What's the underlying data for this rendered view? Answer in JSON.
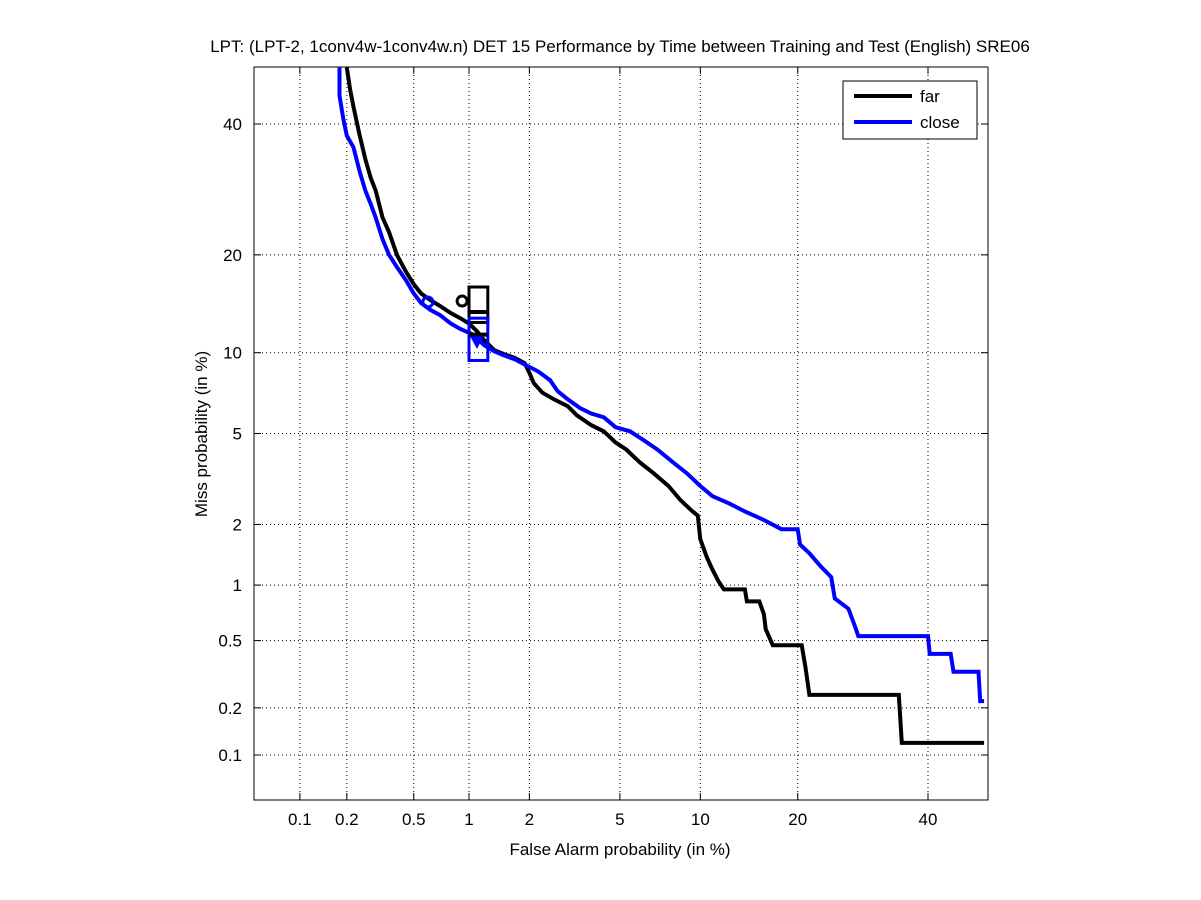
{
  "chart_data": {
    "type": "line",
    "title": "LPT: (LPT-2, 1conv4w-1conv4w.n) DET 15 Performance by Time between Training and Test (English) SRE06",
    "xlabel": "False Alarm probability (in %)",
    "ylabel": "Miss probability (in %)",
    "scale": "probit",
    "xlim": [
      0.05,
      50
    ],
    "ylim": [
      0.05,
      50
    ],
    "xticks": [
      0.1,
      0.2,
      0.5,
      1,
      2,
      5,
      10,
      20,
      40
    ],
    "xtick_labels": [
      "0.1",
      "0.2",
      "0.5",
      "1",
      "2",
      "5",
      "10",
      "20",
      "40"
    ],
    "yticks": [
      0.1,
      0.2,
      0.5,
      1,
      2,
      5,
      10,
      20,
      40
    ],
    "ytick_labels": [
      "0.1",
      "0.2",
      "0.5",
      "1",
      "2",
      "5",
      "10",
      "20",
      "40"
    ],
    "grid": true,
    "legend_position": "top-right",
    "series": [
      {
        "name": "far",
        "color": "#000000",
        "points": [
          [
            0.2,
            50
          ],
          [
            0.21,
            46
          ],
          [
            0.22,
            43
          ],
          [
            0.24,
            38
          ],
          [
            0.26,
            34
          ],
          [
            0.28,
            31
          ],
          [
            0.3,
            29
          ],
          [
            0.33,
            25
          ],
          [
            0.36,
            23
          ],
          [
            0.4,
            20
          ],
          [
            0.45,
            18
          ],
          [
            0.5,
            16.5
          ],
          [
            0.55,
            15.5
          ],
          [
            0.62,
            14.8
          ],
          [
            0.7,
            14.2
          ],
          [
            0.8,
            13.5
          ],
          [
            0.9,
            13
          ],
          [
            1.0,
            12.5
          ],
          [
            1.1,
            11.8
          ],
          [
            1.2,
            11
          ],
          [
            1.35,
            10.2
          ],
          [
            1.5,
            9.9
          ],
          [
            1.7,
            9.6
          ],
          [
            1.9,
            9.2
          ],
          [
            2.0,
            8.5
          ],
          [
            2.1,
            7.8
          ],
          [
            2.3,
            7.2
          ],
          [
            2.6,
            6.8
          ],
          [
            3.0,
            6.4
          ],
          [
            3.3,
            5.9
          ],
          [
            3.8,
            5.4
          ],
          [
            4.3,
            5.1
          ],
          [
            4.8,
            4.6
          ],
          [
            5.3,
            4.3
          ],
          [
            6.0,
            3.8
          ],
          [
            6.8,
            3.4
          ],
          [
            7.7,
            3.0
          ],
          [
            8.5,
            2.6
          ],
          [
            9.4,
            2.3
          ],
          [
            9.8,
            2.2
          ],
          [
            10.0,
            1.7
          ],
          [
            10.5,
            1.4
          ],
          [
            11,
            1.2
          ],
          [
            11.5,
            1.05
          ],
          [
            12,
            0.95
          ],
          [
            14,
            0.95
          ],
          [
            14.2,
            0.82
          ],
          [
            15.5,
            0.82
          ],
          [
            16,
            0.7
          ],
          [
            16.2,
            0.58
          ],
          [
            17,
            0.47
          ],
          [
            20.5,
            0.47
          ],
          [
            21,
            0.35
          ],
          [
            21.5,
            0.24
          ],
          [
            35,
            0.24
          ],
          [
            35.5,
            0.12
          ],
          [
            50,
            0.12
          ]
        ]
      },
      {
        "name": "close",
        "color": "#0000ff",
        "points": [
          [
            0.18,
            50
          ],
          [
            0.18,
            45
          ],
          [
            0.19,
            41
          ],
          [
            0.2,
            38
          ],
          [
            0.22,
            36
          ],
          [
            0.24,
            32
          ],
          [
            0.26,
            29
          ],
          [
            0.28,
            27
          ],
          [
            0.3,
            25
          ],
          [
            0.33,
            22
          ],
          [
            0.36,
            20
          ],
          [
            0.4,
            18.5
          ],
          [
            0.45,
            17
          ],
          [
            0.5,
            15.5
          ],
          [
            0.55,
            14.5
          ],
          [
            0.62,
            13.8
          ],
          [
            0.7,
            13.3
          ],
          [
            0.8,
            12.5
          ],
          [
            0.9,
            12
          ],
          [
            1.05,
            11.5
          ],
          [
            1.2,
            10.6
          ],
          [
            1.35,
            10.1
          ],
          [
            1.5,
            9.8
          ],
          [
            1.7,
            9.5
          ],
          [
            1.9,
            9.1
          ],
          [
            2.2,
            8.6
          ],
          [
            2.5,
            8.0
          ],
          [
            2.7,
            7.3
          ],
          [
            3.0,
            6.8
          ],
          [
            3.4,
            6.3
          ],
          [
            3.8,
            6.0
          ],
          [
            4.3,
            5.8
          ],
          [
            4.8,
            5.3
          ],
          [
            5.5,
            5.1
          ],
          [
            6.2,
            4.7
          ],
          [
            7.0,
            4.3
          ],
          [
            8.0,
            3.8
          ],
          [
            9.0,
            3.4
          ],
          [
            10,
            3.0
          ],
          [
            11,
            2.7
          ],
          [
            12.5,
            2.5
          ],
          [
            14,
            2.3
          ],
          [
            16,
            2.1
          ],
          [
            18,
            1.9
          ],
          [
            20,
            1.9
          ],
          [
            20.3,
            1.6
          ],
          [
            21.5,
            1.45
          ],
          [
            23,
            1.25
          ],
          [
            24.5,
            1.1
          ],
          [
            25,
            0.85
          ],
          [
            27,
            0.75
          ],
          [
            28,
            0.6
          ],
          [
            28.5,
            0.53
          ],
          [
            40,
            0.53
          ],
          [
            40.3,
            0.42
          ],
          [
            44,
            0.42
          ],
          [
            44.5,
            0.33
          ],
          [
            49,
            0.33
          ],
          [
            49.3,
            0.22
          ],
          [
            50,
            0.22
          ]
        ]
      }
    ],
    "markers": {
      "far_circle": [
        0.92,
        14.7
      ],
      "close_circle": [
        0.6,
        14.6
      ],
      "far_box": {
        "fa": [
          1.0,
          1.25
        ],
        "miss": [
          12.6,
          16.2
        ]
      },
      "far_bar": [
        1.0,
        1.25,
        13.6
      ],
      "close_box": {
        "fa": [
          1.0,
          1.25
        ],
        "miss": [
          9.4,
          13.0
        ]
      },
      "close_bar": [
        1.0,
        1.25,
        11.5
      ],
      "close_triangle": [
        1.1,
        10.8
      ]
    }
  }
}
